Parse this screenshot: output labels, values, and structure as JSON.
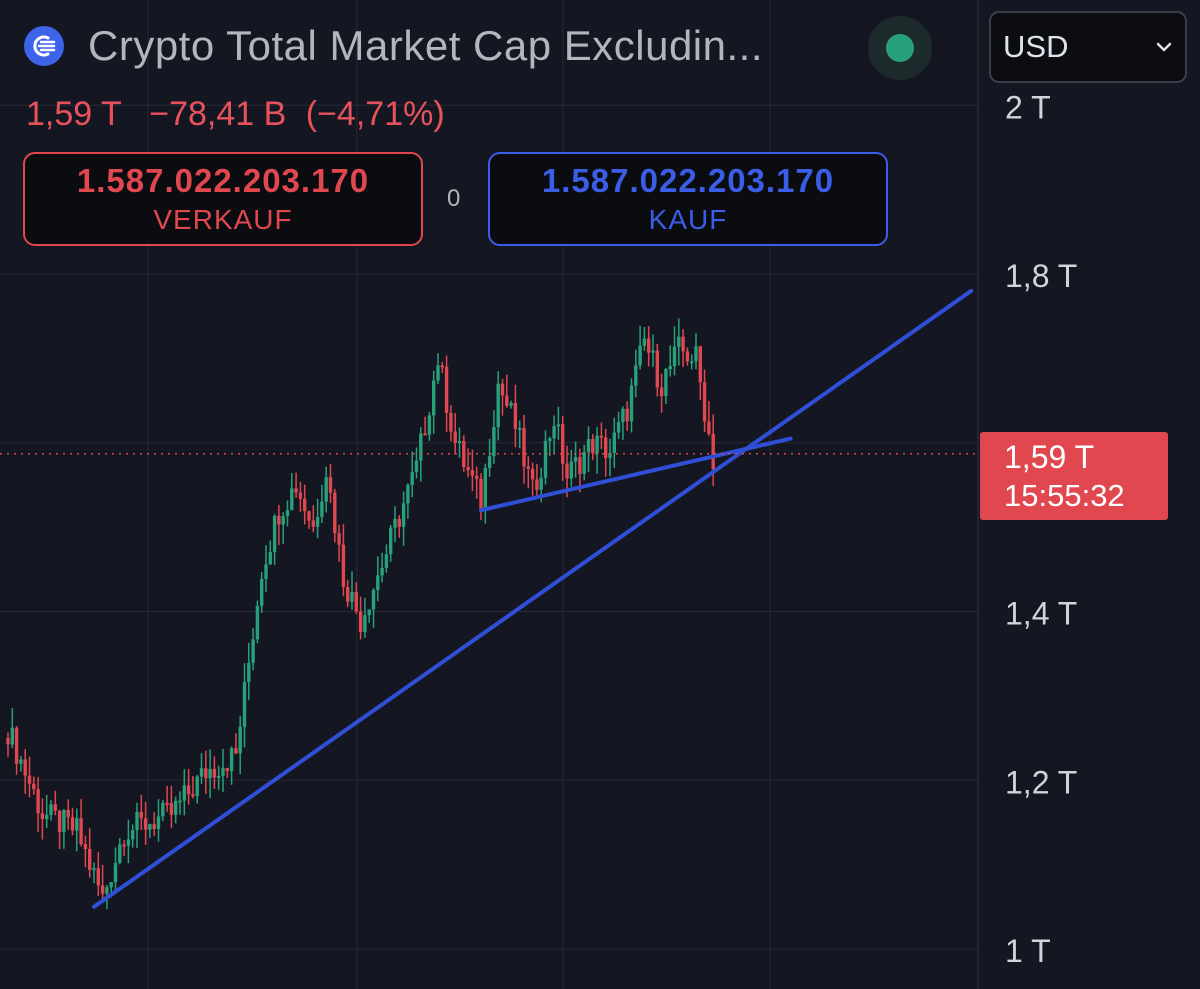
{
  "header": {
    "title": "Crypto Total Market Cap Excludin...",
    "currency": "USD"
  },
  "quote": {
    "last": "1,59 T",
    "change": "−78,41 B",
    "change_pct": "(−4,71%)"
  },
  "trade": {
    "sell_price": "1.587.022.203.170",
    "sell_label": "VERKAUF",
    "spread": "0",
    "buy_price": "1.587.022.203.170",
    "buy_label": "KAUF"
  },
  "price_tag": {
    "value": "1,59 T",
    "countdown": "15:55:32"
  },
  "colors": {
    "background": "#141722",
    "up": "#26a17b",
    "down": "#e0474f",
    "trendline": "#2f4fd6",
    "grid": "#262a35"
  },
  "chart_data": {
    "type": "candlestick",
    "title": "Crypto Total Market Cap Excludin...",
    "ylabel": "",
    "y_scale": "linear",
    "y_unit": "T",
    "ylim": [
      0.97,
      2.03
    ],
    "y_ticks": [
      {
        "value": 1.0,
        "label": "1 T"
      },
      {
        "value": 1.2,
        "label": "1,2 T"
      },
      {
        "value": 1.4,
        "label": "1,4 T"
      },
      {
        "value": 1.6,
        "label": "1,6 T"
      },
      {
        "value": 1.8,
        "label": "1,8 T"
      },
      {
        "value": 2.0,
        "label": "2 T"
      }
    ],
    "grid": true,
    "last_price": 1.587,
    "close_path": [
      [
        0,
        1.26
      ],
      [
        8,
        1.16
      ],
      [
        16,
        1.14
      ],
      [
        22,
        1.06
      ],
      [
        27,
        1.14
      ],
      [
        38,
        1.16
      ],
      [
        46,
        1.21
      ],
      [
        53,
        1.23
      ],
      [
        59,
        1.45
      ],
      [
        63,
        1.52
      ],
      [
        67,
        1.55
      ],
      [
        71,
        1.5
      ],
      [
        74,
        1.57
      ],
      [
        78,
        1.44
      ],
      [
        82,
        1.39
      ],
      [
        88,
        1.47
      ],
      [
        95,
        1.57
      ],
      [
        100,
        1.7
      ],
      [
        104,
        1.6
      ],
      [
        110,
        1.53
      ],
      [
        114,
        1.67
      ],
      [
        118,
        1.62
      ],
      [
        122,
        1.54
      ],
      [
        127,
        1.63
      ],
      [
        130,
        1.56
      ],
      [
        136,
        1.6
      ],
      [
        140,
        1.59
      ],
      [
        144,
        1.64
      ],
      [
        148,
        1.72
      ],
      [
        152,
        1.67
      ],
      [
        156,
        1.71
      ],
      [
        160,
        1.7
      ],
      [
        164,
        1.58
      ]
    ],
    "trendlines": [
      {
        "from": [
          20,
          1.05
        ],
        "to": [
          224,
          1.78
        ]
      },
      {
        "from": [
          110,
          1.52
        ],
        "to": [
          182,
          1.605
        ]
      }
    ]
  }
}
